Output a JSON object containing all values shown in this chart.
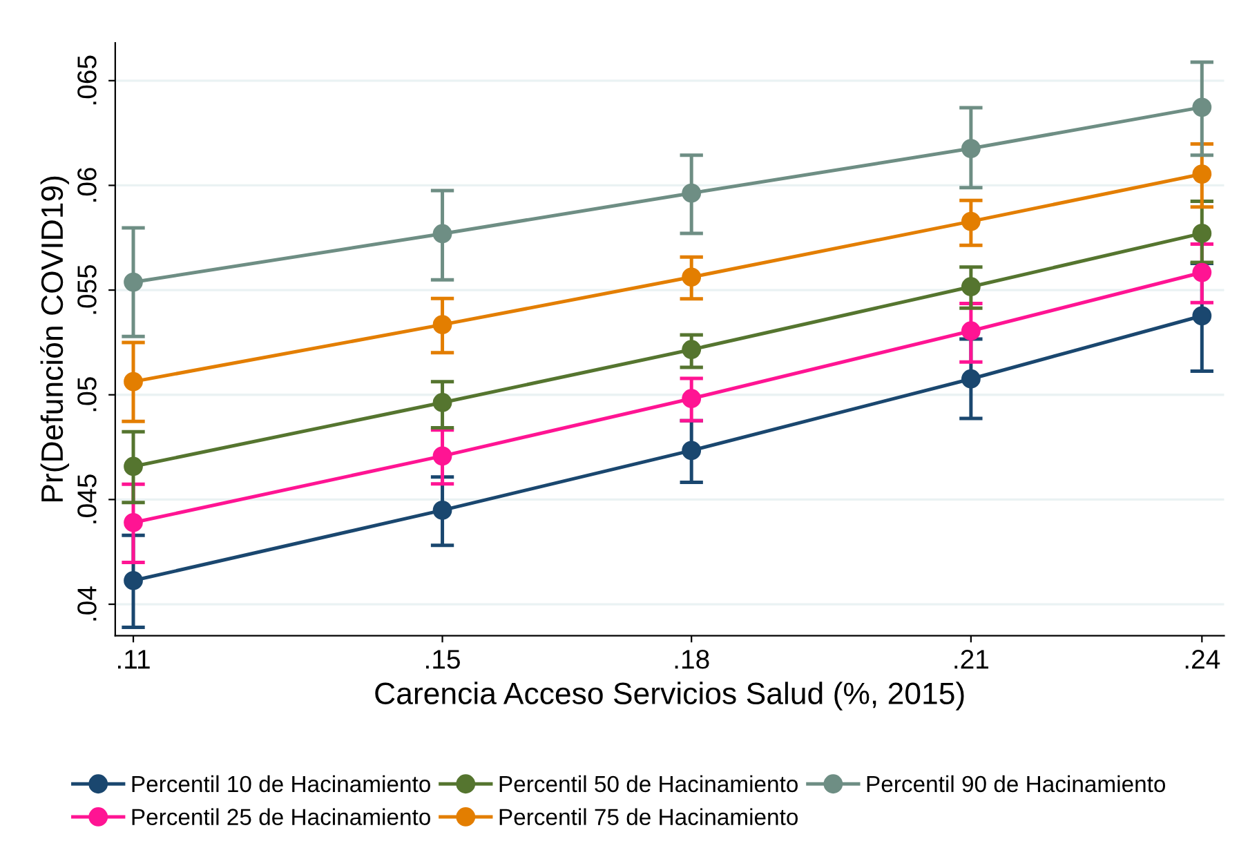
{
  "chart_data": {
    "type": "line",
    "xlabel": "Carencia Acceso Servicios Salud (%, 2015)",
    "ylabel": "Pr(Defunción COVID19)",
    "x": [
      0.11,
      0.1476,
      0.1779,
      0.2119,
      0.24
    ],
    "xlim": [
      0.1078,
      0.2427
    ],
    "xticks": [
      {
        "value": 0.11,
        "label": ".11"
      },
      {
        "value": 0.1476,
        "label": ".15"
      },
      {
        "value": 0.1779,
        "label": ".18"
      },
      {
        "value": 0.2119,
        "label": ".21"
      },
      {
        "value": 0.24,
        "label": ".24"
      }
    ],
    "ylim": [
      0.0385,
      0.0668
    ],
    "yticks": [
      {
        "value": 0.04,
        "label": ".04"
      },
      {
        "value": 0.045,
        "label": ".045"
      },
      {
        "value": 0.05,
        "label": ".05"
      },
      {
        "value": 0.055,
        "label": ".055"
      },
      {
        "value": 0.06,
        "label": ".06"
      },
      {
        "value": 0.065,
        "label": ".065"
      }
    ],
    "grid": "y",
    "legend": "bottom",
    "marker": "circle",
    "line_style": "solid",
    "series": [
      {
        "name": "Percentil 10 de Hacinamiento",
        "color": "#1a476f",
        "values": [
          0.04113,
          0.04449,
          0.04734,
          0.05076,
          0.05377
        ],
        "errors": [
          [
            0.0389,
            0.04329
          ],
          [
            0.04281,
            0.04608
          ],
          [
            0.04582,
            0.04876
          ],
          [
            0.04887,
            0.05266
          ],
          [
            0.05113,
            0.05627
          ]
        ]
      },
      {
        "name": "Percentil 25 de Hacinamiento",
        "color": "#ff1493",
        "values": [
          0.0439,
          0.04708,
          0.04982,
          0.05305,
          0.05584
        ],
        "errors": [
          [
            0.042,
            0.04573
          ],
          [
            0.04575,
            0.04832
          ],
          [
            0.04876,
            0.05078
          ],
          [
            0.05157,
            0.05436
          ],
          [
            0.0544,
            0.0572
          ]
        ]
      },
      {
        "name": "Percentil 50 de Hacinamiento",
        "color": "#55752f",
        "values": [
          0.04658,
          0.04963,
          0.05216,
          0.05516,
          0.05771
        ],
        "errors": [
          [
            0.04486,
            0.04824
          ],
          [
            0.04843,
            0.05063
          ],
          [
            0.05131,
            0.05286
          ],
          [
            0.05414,
            0.0561
          ],
          [
            0.05632,
            0.05924
          ]
        ]
      },
      {
        "name": "Percentil 75 de Hacinamiento",
        "color": "#e37e00",
        "values": [
          0.05063,
          0.05335,
          0.05562,
          0.05828,
          0.06054
        ],
        "errors": [
          [
            0.04873,
            0.0525
          ],
          [
            0.05201,
            0.0546
          ],
          [
            0.05458,
            0.05658
          ],
          [
            0.05714,
            0.05928
          ],
          [
            0.05897,
            0.06198
          ]
        ]
      },
      {
        "name": "Percentil 90 de Hacinamiento",
        "color": "#6e8e84",
        "values": [
          0.05538,
          0.05769,
          0.05963,
          0.06176,
          0.06373
        ],
        "errors": [
          [
            0.05279,
            0.05797
          ],
          [
            0.05549,
            0.05975
          ],
          [
            0.05771,
            0.06144
          ],
          [
            0.05989,
            0.06371
          ],
          [
            0.06144,
            0.06588
          ]
        ]
      }
    ]
  }
}
